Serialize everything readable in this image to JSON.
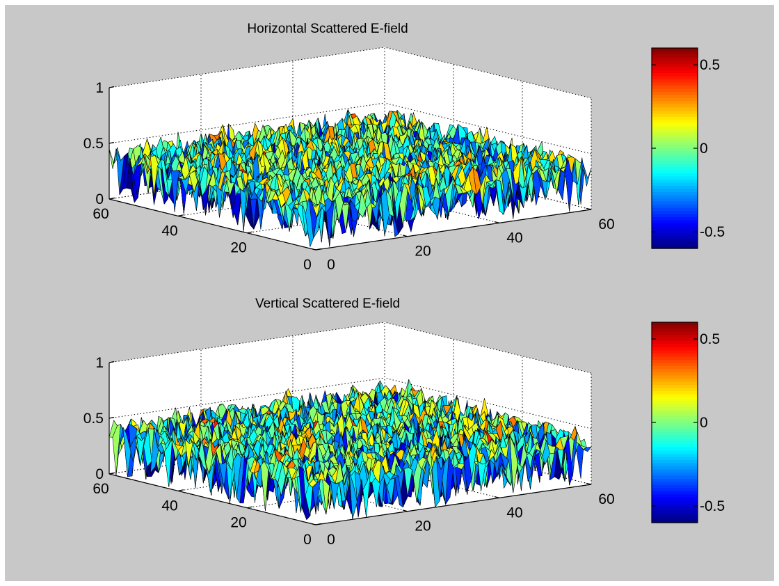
{
  "chart_data": [
    {
      "type": "surface",
      "title": "Horizontal Scattered E-field",
      "x": {
        "ticks": [
          "0",
          "20",
          "40",
          "60"
        ],
        "range": [
          0,
          60
        ]
      },
      "y": {
        "ticks": [
          "0",
          "20",
          "40",
          "60"
        ],
        "range": [
          0,
          60
        ]
      },
      "z": {
        "ticks": [
          "0",
          "0.5",
          "1"
        ],
        "range": [
          0,
          1
        ]
      },
      "colorbar": {
        "ticks": [
          "0.5",
          "0",
          "-0.5"
        ],
        "range": [
          -0.6,
          0.6
        ],
        "colormap": "jet"
      },
      "grid": true,
      "grid_size": [
        60,
        60
      ],
      "z_baseline": 0.38,
      "z_spread": 0.15
    },
    {
      "type": "surface",
      "title": "Vertical Scattered E-field",
      "x": {
        "ticks": [
          "0",
          "20",
          "40",
          "60"
        ],
        "range": [
          0,
          60
        ]
      },
      "y": {
        "ticks": [
          "0",
          "20",
          "40",
          "60"
        ],
        "range": [
          0,
          60
        ]
      },
      "z": {
        "ticks": [
          "0",
          "0.5",
          "1"
        ],
        "range": [
          0,
          1
        ]
      },
      "colorbar": {
        "ticks": [
          "0.5",
          "0",
          "-0.5"
        ],
        "range": [
          -0.6,
          0.6
        ],
        "colormap": "jet"
      },
      "grid": true,
      "grid_size": [
        60,
        60
      ],
      "z_baseline": 0.38,
      "z_spread": 0.18
    }
  ],
  "colors": {
    "figure_background": "#c8c8c8",
    "axes_background": "#ffffff",
    "mesh_edge": "#000000"
  }
}
